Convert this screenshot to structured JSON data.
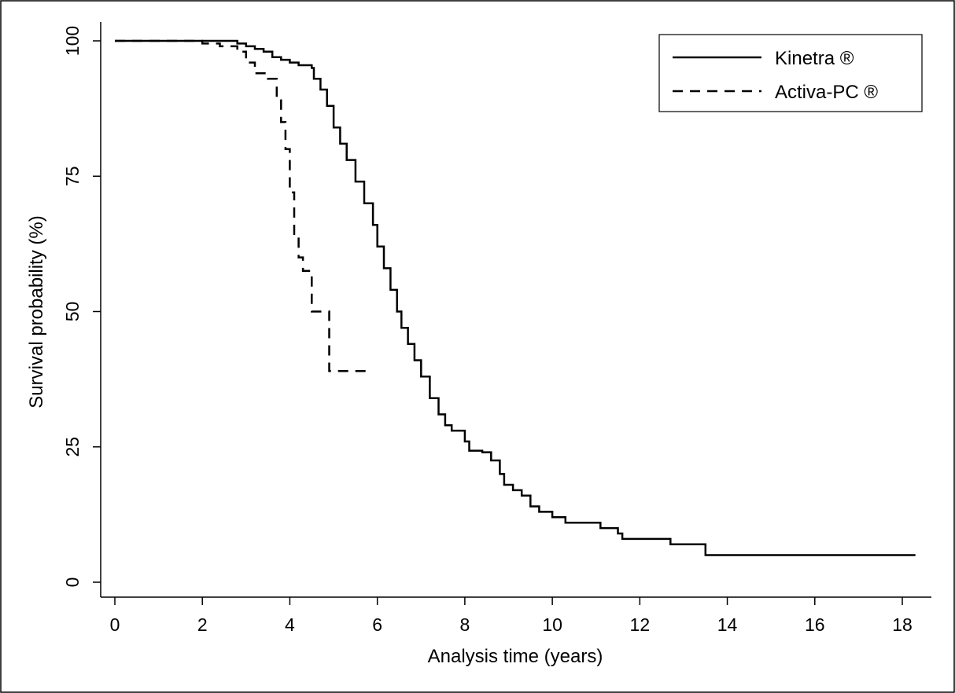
{
  "chart_data": {
    "type": "line",
    "step": true,
    "title": "",
    "xlabel": "Analysis time (years)",
    "ylabel": "Survival probability (%)",
    "xlim": [
      0,
      18.6
    ],
    "ylim": [
      0,
      100
    ],
    "xticks": [
      "0",
      "2",
      "4",
      "6",
      "8",
      "10",
      "12",
      "14",
      "16",
      "18"
    ],
    "yticks": [
      "0",
      "25",
      "50",
      "75",
      "100"
    ],
    "grid": false,
    "legend_position": "top-right",
    "series": [
      {
        "name": "Kinetra ®",
        "style": "solid",
        "color": "#000000",
        "x": [
          0,
          2.8,
          3.0,
          3.2,
          3.4,
          3.6,
          3.8,
          4.0,
          4.2,
          4.5,
          4.55,
          4.7,
          4.85,
          5.0,
          5.15,
          5.3,
          5.5,
          5.7,
          5.9,
          6.0,
          6.15,
          6.3,
          6.45,
          6.55,
          6.7,
          6.85,
          7.0,
          7.2,
          7.4,
          7.55,
          7.7,
          8.0,
          8.1,
          8.4,
          8.6,
          8.8,
          8.9,
          9.1,
          9.3,
          9.5,
          9.7,
          10.0,
          10.3,
          11.1,
          11.5,
          11.6,
          12.7,
          13.5,
          18.3
        ],
        "y": [
          100,
          99.5,
          99,
          98.5,
          98,
          97,
          96.5,
          96,
          95.5,
          95,
          93,
          91,
          88,
          84,
          81,
          78,
          74,
          70,
          66,
          62,
          58,
          54,
          50,
          47,
          44,
          41,
          38,
          34,
          31,
          29,
          28,
          26,
          24.3,
          24,
          22.5,
          20,
          18,
          17,
          16,
          14,
          13,
          12,
          11,
          10,
          9,
          8,
          7,
          5,
          5
        ]
      },
      {
        "name": "Activa-PC ®",
        "style": "dashed",
        "color": "#000000",
        "x": [
          0,
          2.0,
          2.4,
          2.8,
          3.0,
          3.2,
          3.5,
          3.7,
          3.8,
          3.9,
          4.0,
          4.1,
          4.2,
          4.3,
          4.5,
          4.9,
          5.0,
          5.8
        ],
        "y": [
          100,
          99.5,
          99,
          98,
          96,
          94,
          93,
          89,
          85,
          80,
          72,
          64,
          60,
          57.5,
          50,
          39,
          39,
          39
        ]
      }
    ]
  }
}
